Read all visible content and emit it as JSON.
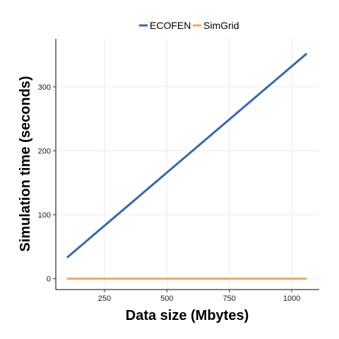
{
  "chart_data": {
    "type": "line",
    "xlabel": "Data  size (Mbytes)",
    "ylabel": "Simulation time (seconds)",
    "xlim": [
      55,
      1110
    ],
    "ylim": [
      -17,
      375
    ],
    "x_ticks": [
      250,
      500,
      750,
      1000
    ],
    "y_ticks": [
      0,
      100,
      200,
      300
    ],
    "grid": true,
    "legend_position": "top",
    "series": [
      {
        "name": "ECOFEN",
        "color": "#3a68a8",
        "x": [
          100,
          1060
        ],
        "y": [
          33,
          352
        ]
      },
      {
        "name": "SimGrid",
        "color": "#f5a65b",
        "x": [
          100,
          1060
        ],
        "y": [
          0,
          0
        ]
      }
    ]
  }
}
